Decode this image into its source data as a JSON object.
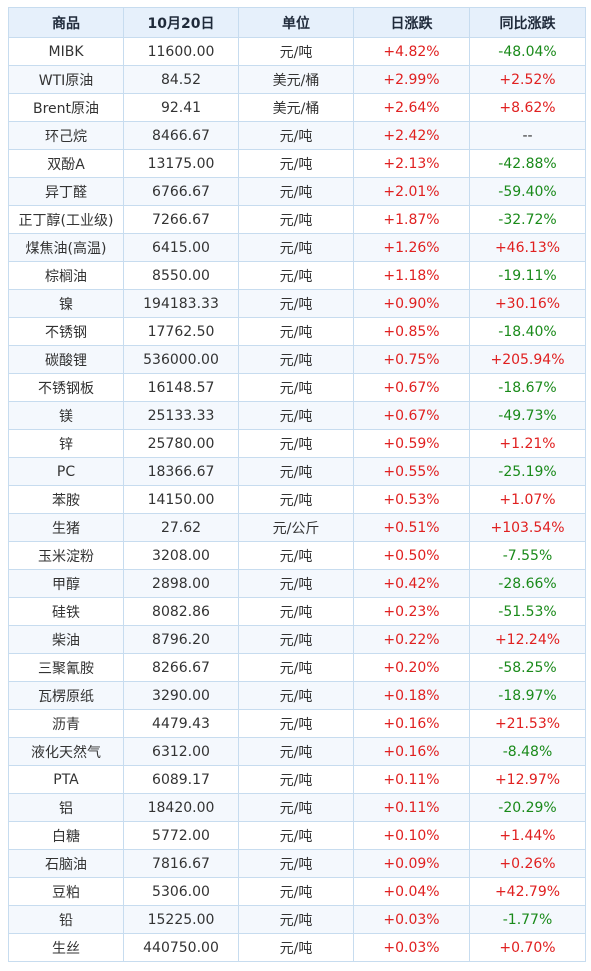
{
  "header": {
    "col_name": "商品",
    "col_price": "10月20日",
    "col_unit": "单位",
    "col_daily": "日涨跌",
    "col_yoy": "同比涨跌"
  },
  "rows": [
    {
      "name": "MIBK",
      "price": "11600.00",
      "unit": "元/吨",
      "daily": "+4.82%",
      "yoy": "-48.04%"
    },
    {
      "name": "WTI原油",
      "price": "84.52",
      "unit": "美元/桶",
      "daily": "+2.99%",
      "yoy": "+2.52%"
    },
    {
      "name": "Brent原油",
      "price": "92.41",
      "unit": "美元/桶",
      "daily": "+2.64%",
      "yoy": "+8.62%"
    },
    {
      "name": "环己烷",
      "price": "8466.67",
      "unit": "元/吨",
      "daily": "+2.42%",
      "yoy": "--"
    },
    {
      "name": "双酚A",
      "price": "13175.00",
      "unit": "元/吨",
      "daily": "+2.13%",
      "yoy": "-42.88%"
    },
    {
      "name": "异丁醛",
      "price": "6766.67",
      "unit": "元/吨",
      "daily": "+2.01%",
      "yoy": "-59.40%"
    },
    {
      "name": "正丁醇(工业级)",
      "price": "7266.67",
      "unit": "元/吨",
      "daily": "+1.87%",
      "yoy": "-32.72%"
    },
    {
      "name": "煤焦油(高温)",
      "price": "6415.00",
      "unit": "元/吨",
      "daily": "+1.26%",
      "yoy": "+46.13%"
    },
    {
      "name": "棕榈油",
      "price": "8550.00",
      "unit": "元/吨",
      "daily": "+1.18%",
      "yoy": "-19.11%"
    },
    {
      "name": "镍",
      "price": "194183.33",
      "unit": "元/吨",
      "daily": "+0.90%",
      "yoy": "+30.16%"
    },
    {
      "name": "不锈钢",
      "price": "17762.50",
      "unit": "元/吨",
      "daily": "+0.85%",
      "yoy": "-18.40%"
    },
    {
      "name": "碳酸锂",
      "price": "536000.00",
      "unit": "元/吨",
      "daily": "+0.75%",
      "yoy": "+205.94%"
    },
    {
      "name": "不锈钢板",
      "price": "16148.57",
      "unit": "元/吨",
      "daily": "+0.67%",
      "yoy": "-18.67%"
    },
    {
      "name": "镁",
      "price": "25133.33",
      "unit": "元/吨",
      "daily": "+0.67%",
      "yoy": "-49.73%"
    },
    {
      "name": "锌",
      "price": "25780.00",
      "unit": "元/吨",
      "daily": "+0.59%",
      "yoy": "+1.21%"
    },
    {
      "name": "PC",
      "price": "18366.67",
      "unit": "元/吨",
      "daily": "+0.55%",
      "yoy": "-25.19%"
    },
    {
      "name": "苯胺",
      "price": "14150.00",
      "unit": "元/吨",
      "daily": "+0.53%",
      "yoy": "+1.07%"
    },
    {
      "name": "生猪",
      "price": "27.62",
      "unit": "元/公斤",
      "daily": "+0.51%",
      "yoy": "+103.54%"
    },
    {
      "name": "玉米淀粉",
      "price": "3208.00",
      "unit": "元/吨",
      "daily": "+0.50%",
      "yoy": "-7.55%"
    },
    {
      "name": "甲醇",
      "price": "2898.00",
      "unit": "元/吨",
      "daily": "+0.42%",
      "yoy": "-28.66%"
    },
    {
      "name": "硅铁",
      "price": "8082.86",
      "unit": "元/吨",
      "daily": "+0.23%",
      "yoy": "-51.53%"
    },
    {
      "name": "柴油",
      "price": "8796.20",
      "unit": "元/吨",
      "daily": "+0.22%",
      "yoy": "+12.24%"
    },
    {
      "name": "三聚氰胺",
      "price": "8266.67",
      "unit": "元/吨",
      "daily": "+0.20%",
      "yoy": "-58.25%"
    },
    {
      "name": "瓦楞原纸",
      "price": "3290.00",
      "unit": "元/吨",
      "daily": "+0.18%",
      "yoy": "-18.97%"
    },
    {
      "name": "沥青",
      "price": "4479.43",
      "unit": "元/吨",
      "daily": "+0.16%",
      "yoy": "+21.53%"
    },
    {
      "name": "液化天然气",
      "price": "6312.00",
      "unit": "元/吨",
      "daily": "+0.16%",
      "yoy": "-8.48%"
    },
    {
      "name": "PTA",
      "price": "6089.17",
      "unit": "元/吨",
      "daily": "+0.11%",
      "yoy": "+12.97%"
    },
    {
      "name": "铝",
      "price": "18420.00",
      "unit": "元/吨",
      "daily": "+0.11%",
      "yoy": "-20.29%"
    },
    {
      "name": "白糖",
      "price": "5772.00",
      "unit": "元/吨",
      "daily": "+0.10%",
      "yoy": "+1.44%"
    },
    {
      "name": "石脑油",
      "price": "7816.67",
      "unit": "元/吨",
      "daily": "+0.09%",
      "yoy": "+0.26%"
    },
    {
      "name": "豆粕",
      "price": "5306.00",
      "unit": "元/吨",
      "daily": "+0.04%",
      "yoy": "+42.79%"
    },
    {
      "name": "铅",
      "price": "15225.00",
      "unit": "元/吨",
      "daily": "+0.03%",
      "yoy": "-1.77%"
    },
    {
      "name": "生丝",
      "price": "440750.00",
      "unit": "元/吨",
      "daily": "+0.03%",
      "yoy": "+0.70%"
    }
  ],
  "colors": {
    "up": "#e02020",
    "down": "#1a8a1a",
    "header_bg": "#e6f0fb",
    "border": "#c7dcef"
  }
}
